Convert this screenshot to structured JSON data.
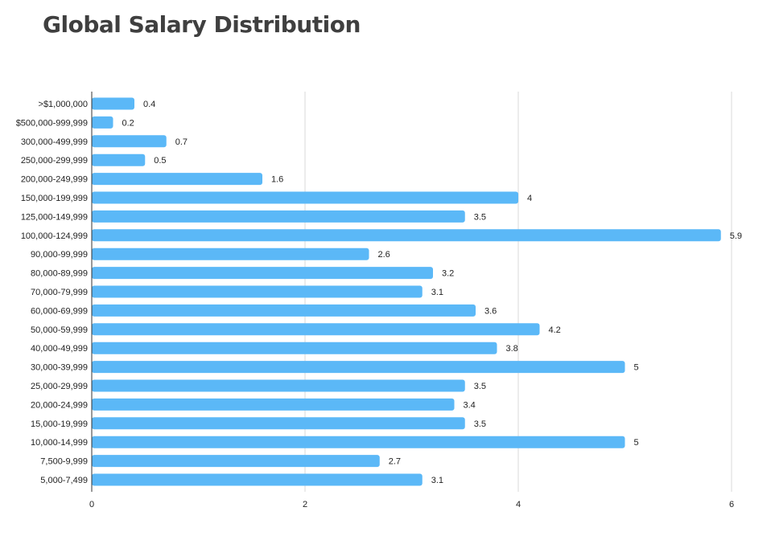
{
  "chart_data": {
    "type": "bar",
    "orientation": "horizontal",
    "title": "Global Salary Distribution",
    "xlabel": "",
    "ylabel": "",
    "xlim": [
      0,
      6
    ],
    "x_ticks": [
      0,
      2,
      4,
      6
    ],
    "grid": true,
    "legend": "none",
    "color": "#5bb8f7",
    "categories": [
      ">$1,000,000",
      "$500,000-999,999",
      "300,000-499,999",
      "250,000-299,999",
      "200,000-249,999",
      "150,000-199,999",
      "125,000-149,999",
      "100,000-124,999",
      "90,000-99,999",
      "80,000-89,999",
      "70,000-79,999",
      "60,000-69,999",
      "50,000-59,999",
      "40,000-49,999",
      "30,000-39,999",
      "25,000-29,999",
      "20,000-24,999",
      "15,000-19,999",
      "10,000-14,999",
      "7,500-9,999",
      "5,000-7,499"
    ],
    "values": [
      0.4,
      0.2,
      0.7,
      0.5,
      1.6,
      4,
      3.5,
      5.9,
      2.6,
      3.2,
      3.1,
      3.6,
      4.2,
      3.8,
      5,
      3.5,
      3.4,
      3.5,
      5,
      2.7,
      3.1
    ]
  }
}
